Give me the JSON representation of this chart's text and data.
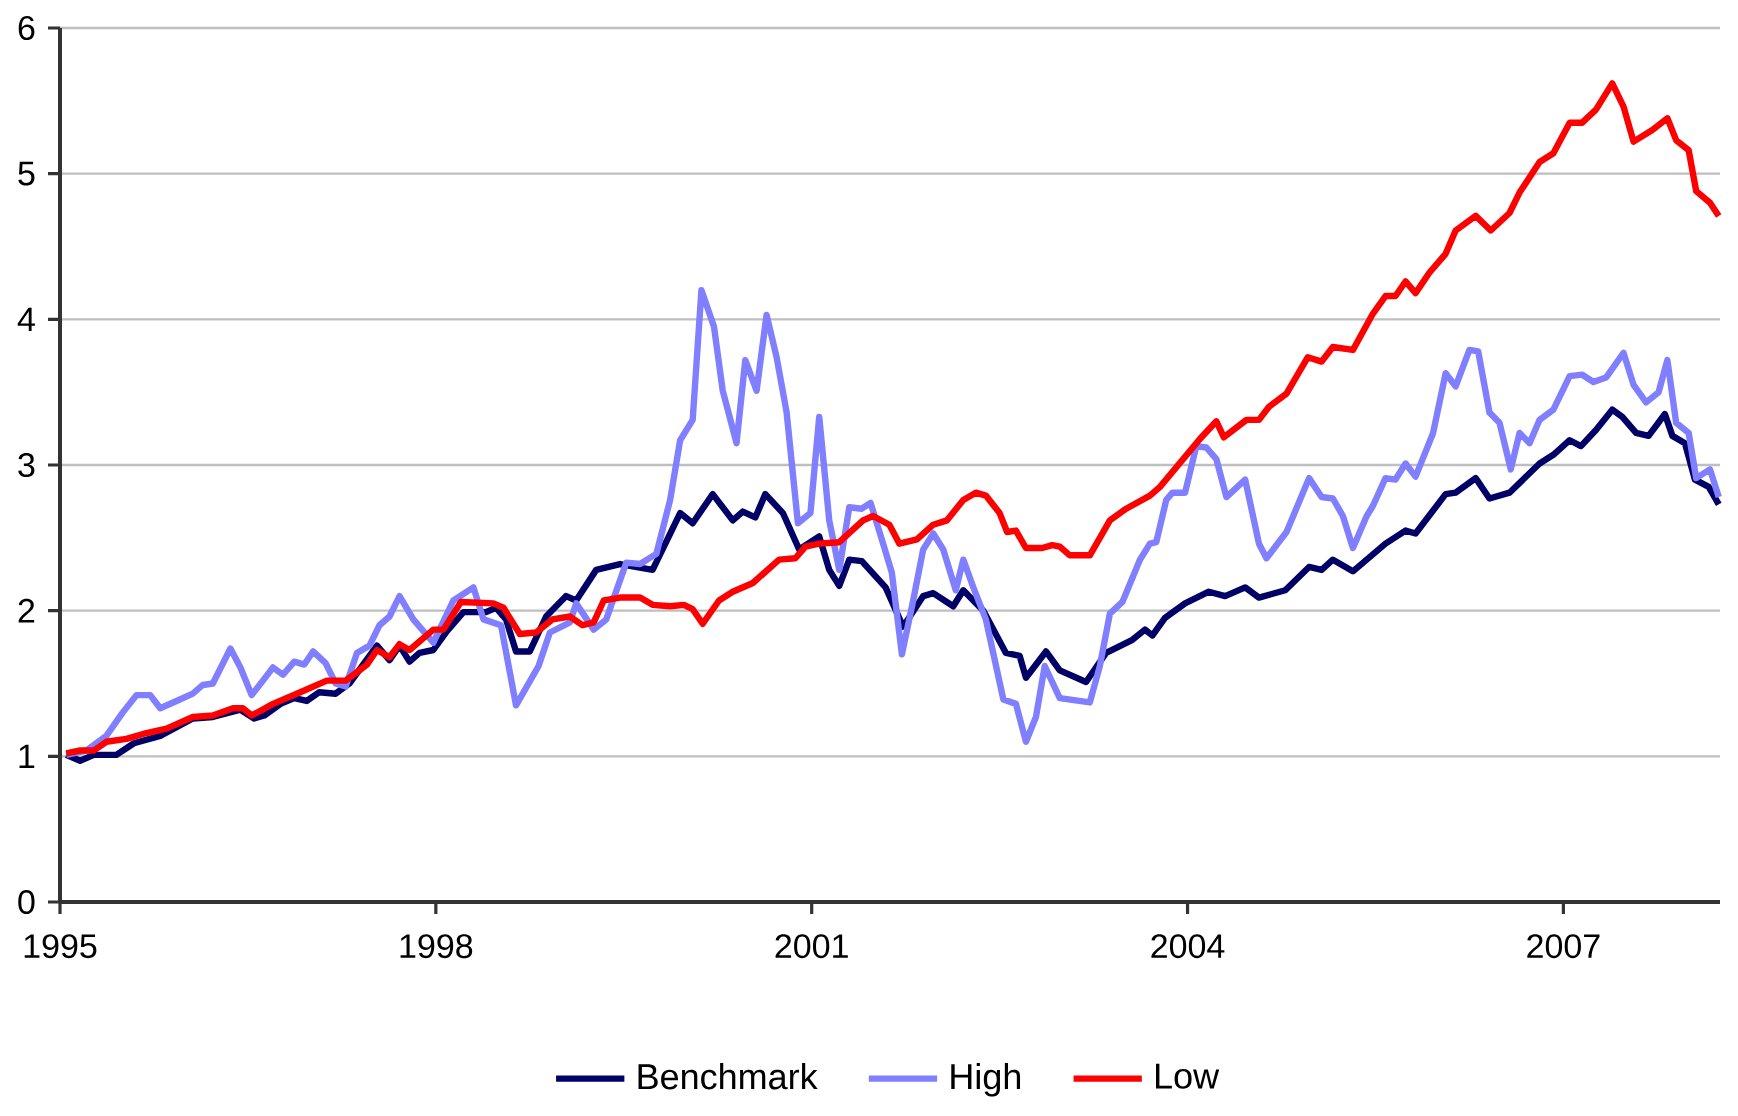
{
  "chart_data": {
    "type": "line",
    "xlim": [
      1995,
      2008.25
    ],
    "xticks": [
      1995,
      1998,
      2001,
      2004,
      2007
    ],
    "ylim": [
      0,
      6
    ],
    "yticks": [
      0,
      1,
      2,
      3,
      4,
      5,
      6
    ],
    "grid": "y",
    "legend": "bottom",
    "marker": "none",
    "line_style": "solid",
    "series": [
      {
        "name": "Benchmark",
        "color": "#000066",
        "x": [
          1995.05,
          1995.16,
          1995.27,
          1995.45,
          1995.59,
          1995.8,
          1996.06,
          1996.22,
          1996.44,
          1996.55,
          1996.63,
          1996.76,
          1996.87,
          1996.97,
          1997.07,
          1997.2,
          1997.31,
          1997.53,
          1997.63,
          1997.71,
          1997.79,
          1997.87,
          1997.98,
          1998.08,
          1998.22,
          1998.4,
          1998.48,
          1998.56,
          1998.64,
          1998.75,
          1998.88,
          1999.04,
          1999.12,
          1999.28,
          1999.47,
          1999.73,
          1999.95,
          2000.05,
          2000.21,
          2000.37,
          2000.45,
          2000.55,
          2000.63,
          2000.77,
          2000.9,
          2001.06,
          2001.14,
          2001.22,
          2001.3,
          2001.4,
          2001.59,
          2001.73,
          2001.89,
          2001.97,
          2002.13,
          2002.21,
          2002.37,
          2002.55,
          2002.66,
          2002.71,
          2002.87,
          2002.98,
          2003.19,
          2003.35,
          2003.56,
          2003.66,
          2003.72,
          2003.82,
          2003.98,
          2004.17,
          2004.3,
          2004.46,
          2004.57,
          2004.78,
          2004.97,
          2005.07,
          2005.16,
          2005.32,
          2005.58,
          2005.74,
          2005.82,
          2006.06,
          2006.14,
          2006.3,
          2006.41,
          2006.57,
          2006.81,
          2006.92,
          2007.05,
          2007.14,
          2007.26,
          2007.39,
          2007.47,
          2007.58,
          2007.68,
          2007.81,
          2007.87,
          2007.97,
          2008.05,
          2008.16,
          2008.24
        ],
        "values": [
          1.01,
          0.97,
          1.01,
          1.01,
          1.09,
          1.14,
          1.26,
          1.27,
          1.32,
          1.26,
          1.28,
          1.36,
          1.4,
          1.38,
          1.44,
          1.43,
          1.5,
          1.76,
          1.66,
          1.76,
          1.65,
          1.71,
          1.73,
          1.85,
          1.99,
          1.99,
          2.02,
          1.94,
          1.72,
          1.72,
          1.96,
          2.1,
          2.07,
          2.28,
          2.32,
          2.28,
          2.67,
          2.6,
          2.8,
          2.62,
          2.68,
          2.64,
          2.8,
          2.67,
          2.42,
          2.51,
          2.28,
          2.17,
          2.35,
          2.34,
          2.16,
          1.89,
          2.1,
          2.12,
          2.03,
          2.14,
          2.0,
          1.71,
          1.69,
          1.54,
          1.72,
          1.59,
          1.51,
          1.71,
          1.8,
          1.87,
          1.83,
          1.95,
          2.05,
          2.13,
          2.1,
          2.16,
          2.09,
          2.14,
          2.3,
          2.28,
          2.35,
          2.27,
          2.46,
          2.55,
          2.53,
          2.8,
          2.81,
          2.91,
          2.77,
          2.81,
          3.01,
          3.07,
          3.17,
          3.13,
          3.24,
          3.38,
          3.33,
          3.22,
          3.2,
          3.35,
          3.2,
          3.15,
          2.9,
          2.85,
          2.73
        ]
      },
      {
        "name": "High",
        "color": "#7f7fff",
        "x": [
          1995.05,
          1995.21,
          1995.37,
          1995.5,
          1995.61,
          1995.72,
          1995.8,
          1995.93,
          1996.06,
          1996.14,
          1996.22,
          1996.36,
          1996.44,
          1996.53,
          1996.7,
          1996.78,
          1996.87,
          1996.95,
          1997.02,
          1997.12,
          1997.2,
          1997.28,
          1997.37,
          1997.47,
          1997.55,
          1997.63,
          1997.71,
          1997.82,
          1997.98,
          1998.14,
          1998.3,
          1998.38,
          1998.52,
          1998.64,
          1998.82,
          1998.91,
          1999.07,
          1999.12,
          1999.26,
          1999.36,
          1999.52,
          1999.63,
          1999.76,
          1999.87,
          1999.95,
          2000.05,
          2000.12,
          2000.22,
          2000.29,
          2000.4,
          2000.47,
          2000.56,
          2000.64,
          2000.72,
          2000.8,
          2000.89,
          2000.99,
          2001.06,
          2001.14,
          2001.22,
          2001.3,
          2001.4,
          2001.47,
          2001.57,
          2001.64,
          2001.72,
          2001.81,
          2001.89,
          2001.97,
          2002.05,
          2002.15,
          2002.21,
          2002.29,
          2002.39,
          2002.53,
          2002.63,
          2002.71,
          2002.79,
          2002.86,
          2002.98,
          2003.22,
          2003.3,
          2003.38,
          2003.48,
          2003.62,
          2003.7,
          2003.75,
          2003.83,
          2003.88,
          2003.98,
          2004.07,
          2004.15,
          2004.23,
          2004.31,
          2004.46,
          2004.57,
          2004.63,
          2004.79,
          2004.97,
          2005.07,
          2005.16,
          2005.24,
          2005.32,
          2005.43,
          2005.48,
          2005.58,
          2005.66,
          2005.74,
          2005.82,
          2005.96,
          2006.06,
          2006.14,
          2006.25,
          2006.32,
          2006.41,
          2006.49,
          2006.58,
          2006.65,
          2006.73,
          2006.81,
          2006.92,
          2007.05,
          2007.15,
          2007.24,
          2007.34,
          2007.48,
          2007.56,
          2007.66,
          2007.76,
          2007.83,
          2007.9,
          2008.0,
          2008.06,
          2008.17,
          2008.24
        ],
        "values": [
          1.01,
          1.04,
          1.14,
          1.3,
          1.42,
          1.42,
          1.33,
          1.38,
          1.43,
          1.49,
          1.5,
          1.74,
          1.61,
          1.42,
          1.61,
          1.56,
          1.65,
          1.63,
          1.72,
          1.64,
          1.5,
          1.48,
          1.71,
          1.76,
          1.9,
          1.96,
          2.1,
          1.94,
          1.78,
          2.07,
          2.16,
          1.94,
          1.9,
          1.35,
          1.62,
          1.85,
          1.92,
          2.05,
          1.87,
          1.94,
          2.33,
          2.32,
          2.39,
          2.76,
          3.17,
          3.31,
          4.2,
          3.95,
          3.51,
          3.15,
          3.72,
          3.51,
          4.03,
          3.74,
          3.36,
          2.6,
          2.67,
          3.33,
          2.62,
          2.28,
          2.71,
          2.7,
          2.74,
          2.46,
          2.26,
          1.7,
          2.07,
          2.42,
          2.53,
          2.42,
          2.14,
          2.35,
          2.16,
          1.94,
          1.39,
          1.36,
          1.1,
          1.27,
          1.62,
          1.4,
          1.37,
          1.62,
          1.98,
          2.06,
          2.35,
          2.46,
          2.47,
          2.76,
          2.81,
          2.81,
          3.13,
          3.12,
          3.04,
          2.78,
          2.9,
          2.46,
          2.36,
          2.54,
          2.91,
          2.78,
          2.77,
          2.65,
          2.43,
          2.65,
          2.72,
          2.91,
          2.9,
          3.01,
          2.92,
          3.22,
          3.63,
          3.54,
          3.79,
          3.78,
          3.36,
          3.29,
          2.97,
          3.22,
          3.15,
          3.31,
          3.38,
          3.61,
          3.62,
          3.57,
          3.6,
          3.77,
          3.55,
          3.43,
          3.5,
          3.72,
          3.29,
          3.22,
          2.91,
          2.97,
          2.78
        ]
      },
      {
        "name": "Low",
        "color": "#ff0000",
        "x": [
          1995.05,
          1995.16,
          1995.27,
          1995.37,
          1995.53,
          1995.69,
          1995.85,
          1996.06,
          1996.22,
          1996.38,
          1996.46,
          1996.53,
          1996.7,
          1996.89,
          1997.13,
          1997.28,
          1997.45,
          1997.53,
          1997.63,
          1997.71,
          1997.79,
          1997.98,
          1998.06,
          1998.2,
          1998.46,
          1998.54,
          1998.67,
          1998.8,
          1998.93,
          1999.07,
          1999.17,
          1999.26,
          1999.34,
          1999.47,
          1999.63,
          1999.73,
          1999.87,
          1999.98,
          2000.05,
          2000.13,
          2000.26,
          2000.37,
          2000.53,
          2000.74,
          2000.87,
          2000.95,
          2001.06,
          2001.22,
          2001.41,
          2001.49,
          2001.62,
          2001.7,
          2001.84,
          2001.97,
          2002.08,
          2002.21,
          2002.31,
          2002.39,
          2002.5,
          2002.56,
          2002.63,
          2002.71,
          2002.84,
          2002.92,
          2002.98,
          2003.06,
          2003.22,
          2003.38,
          2003.51,
          2003.7,
          2003.78,
          2004.1,
          2004.23,
          2004.29,
          2004.47,
          2004.57,
          2004.65,
          2004.79,
          2004.96,
          2005.07,
          2005.16,
          2005.32,
          2005.48,
          2005.58,
          2005.66,
          2005.74,
          2005.82,
          2005.93,
          2006.06,
          2006.14,
          2006.3,
          2006.42,
          2006.57,
          2006.65,
          2006.81,
          2006.92,
          2007.05,
          2007.15,
          2007.26,
          2007.39,
          2007.48,
          2007.56,
          2007.71,
          2007.83,
          2007.9,
          2008.0,
          2008.06,
          2008.17,
          2008.24
        ],
        "values": [
          1.02,
          1.04,
          1.04,
          1.1,
          1.12,
          1.16,
          1.19,
          1.27,
          1.28,
          1.33,
          1.33,
          1.28,
          1.36,
          1.43,
          1.52,
          1.52,
          1.63,
          1.73,
          1.68,
          1.77,
          1.73,
          1.87,
          1.87,
          2.06,
          2.05,
          2.02,
          1.84,
          1.85,
          1.94,
          1.96,
          1.9,
          1.92,
          2.07,
          2.09,
          2.09,
          2.04,
          2.03,
          2.04,
          2.01,
          1.91,
          2.07,
          2.13,
          2.19,
          2.35,
          2.36,
          2.44,
          2.46,
          2.47,
          2.62,
          2.65,
          2.59,
          2.46,
          2.49,
          2.59,
          2.62,
          2.76,
          2.81,
          2.79,
          2.67,
          2.54,
          2.55,
          2.43,
          2.43,
          2.45,
          2.44,
          2.38,
          2.38,
          2.62,
          2.7,
          2.79,
          2.85,
          3.18,
          3.3,
          3.19,
          3.31,
          3.31,
          3.4,
          3.49,
          3.74,
          3.71,
          3.81,
          3.79,
          4.04,
          4.16,
          4.16,
          4.26,
          4.18,
          4.32,
          4.45,
          4.61,
          4.71,
          4.61,
          4.73,
          4.87,
          5.08,
          5.14,
          5.35,
          5.35,
          5.44,
          5.62,
          5.46,
          5.22,
          5.3,
          5.38,
          5.23,
          5.16,
          4.88,
          4.8,
          4.71
        ]
      }
    ]
  }
}
